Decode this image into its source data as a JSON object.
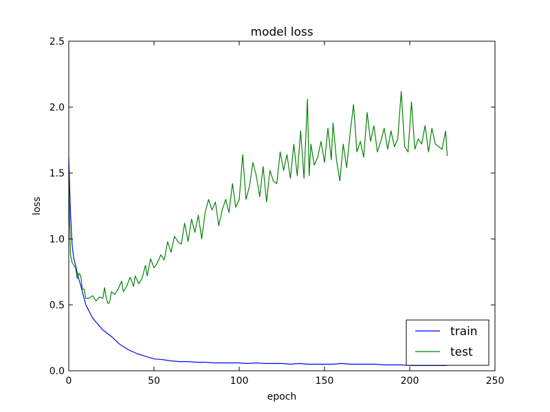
{
  "chart_data": {
    "type": "line",
    "title": "model loss",
    "xlabel": "epoch",
    "ylabel": "loss",
    "xlim": [
      0,
      250
    ],
    "ylim": [
      0,
      2.5
    ],
    "x_ticks": [
      "0",
      "50",
      "100",
      "150",
      "200",
      "250"
    ],
    "y_ticks": [
      "0.0",
      "0.5",
      "1.0",
      "1.5",
      "2.0",
      "2.5"
    ],
    "grid": false,
    "legend_position": "lower-right",
    "series": [
      {
        "name": "train",
        "color": "#0000ff",
        "points": [
          [
            0,
            1.62
          ],
          [
            1,
            1.2
          ],
          [
            2,
            0.95
          ],
          [
            3,
            0.85
          ],
          [
            4,
            0.8
          ],
          [
            5,
            0.74
          ],
          [
            6,
            0.69
          ],
          [
            7,
            0.65
          ],
          [
            8,
            0.6
          ],
          [
            9,
            0.55
          ],
          [
            10,
            0.5
          ],
          [
            12,
            0.45
          ],
          [
            14,
            0.4
          ],
          [
            16,
            0.37
          ],
          [
            18,
            0.34
          ],
          [
            20,
            0.31
          ],
          [
            25,
            0.26
          ],
          [
            30,
            0.2
          ],
          [
            35,
            0.16
          ],
          [
            40,
            0.13
          ],
          [
            45,
            0.11
          ],
          [
            50,
            0.09
          ],
          [
            55,
            0.085
          ],
          [
            60,
            0.075
          ],
          [
            65,
            0.07
          ],
          [
            70,
            0.07
          ],
          [
            75,
            0.065
          ],
          [
            80,
            0.065
          ],
          [
            85,
            0.06
          ],
          [
            90,
            0.06
          ],
          [
            95,
            0.06
          ],
          [
            100,
            0.06
          ],
          [
            105,
            0.055
          ],
          [
            110,
            0.06
          ],
          [
            115,
            0.055
          ],
          [
            120,
            0.055
          ],
          [
            125,
            0.055
          ],
          [
            130,
            0.05
          ],
          [
            135,
            0.055
          ],
          [
            140,
            0.05
          ],
          [
            145,
            0.05
          ],
          [
            150,
            0.05
          ],
          [
            155,
            0.05
          ],
          [
            160,
            0.055
          ],
          [
            165,
            0.05
          ],
          [
            170,
            0.05
          ],
          [
            175,
            0.05
          ],
          [
            180,
            0.05
          ],
          [
            185,
            0.045
          ],
          [
            190,
            0.045
          ],
          [
            195,
            0.045
          ],
          [
            200,
            0.04
          ],
          [
            205,
            0.04
          ],
          [
            210,
            0.04
          ],
          [
            215,
            0.04
          ],
          [
            220,
            0.04
          ],
          [
            222,
            0.04
          ]
        ]
      },
      {
        "name": "test",
        "color": "#008000",
        "points": [
          [
            0,
            1.42
          ],
          [
            1,
            0.88
          ],
          [
            2,
            0.82
          ],
          [
            3,
            0.8
          ],
          [
            4,
            0.78
          ],
          [
            5,
            0.7
          ],
          [
            6,
            0.74
          ],
          [
            7,
            0.72
          ],
          [
            8,
            0.62
          ],
          [
            9,
            0.62
          ],
          [
            10,
            0.55
          ],
          [
            12,
            0.55
          ],
          [
            14,
            0.57
          ],
          [
            16,
            0.53
          ],
          [
            18,
            0.56
          ],
          [
            20,
            0.55
          ],
          [
            21,
            0.63
          ],
          [
            22,
            0.55
          ],
          [
            23,
            0.51
          ],
          [
            24,
            0.52
          ],
          [
            25,
            0.6
          ],
          [
            27,
            0.58
          ],
          [
            29,
            0.62
          ],
          [
            31,
            0.68
          ],
          [
            32,
            0.6
          ],
          [
            34,
            0.64
          ],
          [
            36,
            0.71
          ],
          [
            38,
            0.64
          ],
          [
            39,
            0.72
          ],
          [
            41,
            0.66
          ],
          [
            43,
            0.7
          ],
          [
            45,
            0.8
          ],
          [
            46,
            0.72
          ],
          [
            48,
            0.85
          ],
          [
            50,
            0.78
          ],
          [
            52,
            0.82
          ],
          [
            54,
            0.88
          ],
          [
            56,
            0.84
          ],
          [
            58,
            0.98
          ],
          [
            60,
            0.9
          ],
          [
            62,
            1.02
          ],
          [
            64,
            0.98
          ],
          [
            66,
            0.96
          ],
          [
            68,
            1.12
          ],
          [
            70,
            0.98
          ],
          [
            72,
            1.15
          ],
          [
            74,
            1.05
          ],
          [
            76,
            1.18
          ],
          [
            78,
            1.0
          ],
          [
            80,
            1.2
          ],
          [
            82,
            1.3
          ],
          [
            84,
            1.22
          ],
          [
            86,
            1.28
          ],
          [
            88,
            1.1
          ],
          [
            90,
            1.22
          ],
          [
            92,
            1.3
          ],
          [
            94,
            1.2
          ],
          [
            96,
            1.42
          ],
          [
            98,
            1.24
          ],
          [
            100,
            1.3
          ],
          [
            102,
            1.64
          ],
          [
            104,
            1.3
          ],
          [
            106,
            1.4
          ],
          [
            108,
            1.58
          ],
          [
            110,
            1.48
          ],
          [
            112,
            1.32
          ],
          [
            114,
            1.55
          ],
          [
            116,
            1.28
          ],
          [
            118,
            1.52
          ],
          [
            120,
            1.44
          ],
          [
            122,
            1.42
          ],
          [
            124,
            1.66
          ],
          [
            126,
            1.52
          ],
          [
            128,
            1.64
          ],
          [
            130,
            1.46
          ],
          [
            132,
            1.72
          ],
          [
            134,
            1.48
          ],
          [
            136,
            1.82
          ],
          [
            138,
            1.46
          ],
          [
            140,
            2.06
          ],
          [
            141,
            1.48
          ],
          [
            142,
            1.72
          ],
          [
            144,
            1.56
          ],
          [
            146,
            1.62
          ],
          [
            148,
            1.74
          ],
          [
            150,
            1.58
          ],
          [
            152,
            1.84
          ],
          [
            154,
            1.6
          ],
          [
            155,
            1.88
          ],
          [
            157,
            1.6
          ],
          [
            159,
            1.44
          ],
          [
            161,
            1.72
          ],
          [
            163,
            1.54
          ],
          [
            165,
            1.8
          ],
          [
            167,
            2.02
          ],
          [
            169,
            1.66
          ],
          [
            171,
            1.74
          ],
          [
            173,
            1.62
          ],
          [
            175,
            1.96
          ],
          [
            177,
            1.74
          ],
          [
            179,
            1.86
          ],
          [
            181,
            1.66
          ],
          [
            183,
            1.74
          ],
          [
            185,
            1.84
          ],
          [
            187,
            1.68
          ],
          [
            189,
            1.82
          ],
          [
            191,
            1.7
          ],
          [
            193,
            1.76
          ],
          [
            195,
            2.12
          ],
          [
            197,
            1.7
          ],
          [
            199,
            1.66
          ],
          [
            201,
            2.04
          ],
          [
            203,
            1.68
          ],
          [
            205,
            1.76
          ],
          [
            207,
            1.72
          ],
          [
            209,
            1.86
          ],
          [
            211,
            1.66
          ],
          [
            213,
            1.84
          ],
          [
            215,
            1.72
          ],
          [
            217,
            1.7
          ],
          [
            219,
            1.68
          ],
          [
            221,
            1.82
          ],
          [
            222,
            1.63
          ]
        ]
      }
    ]
  }
}
